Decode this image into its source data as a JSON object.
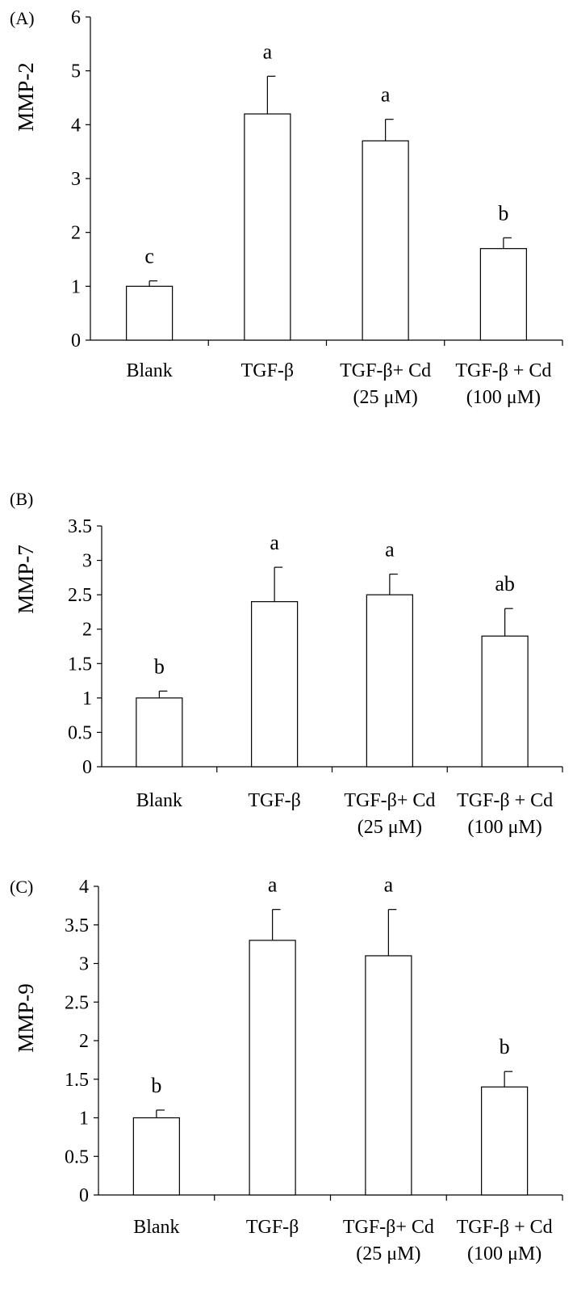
{
  "chart_data": [
    {
      "type": "bar",
      "panel_label": "(A)",
      "ylabel": "MMP-2",
      "categories": [
        [
          "Blank"
        ],
        [
          "TGF-β"
        ],
        [
          "TGF-β+ Cd",
          "(25 μM)"
        ],
        [
          "TGF-β + Cd",
          "(100 μM)"
        ]
      ],
      "values": [
        1.0,
        4.2,
        3.7,
        1.7
      ],
      "errors": [
        0.1,
        0.7,
        0.4,
        0.2
      ],
      "significance": [
        "c",
        "a",
        "a",
        "b"
      ],
      "ylim": [
        0,
        6
      ],
      "yticks": [
        "0",
        "1",
        "2",
        "3",
        "4",
        "5",
        "6"
      ],
      "bar_fill": "#ffffff",
      "bar_stroke": "#000000",
      "grid": false,
      "legend": "none"
    },
    {
      "type": "bar",
      "panel_label": "(B)",
      "ylabel": "MMP-7",
      "categories": [
        [
          "Blank"
        ],
        [
          "TGF-β"
        ],
        [
          "TGF-β+ Cd",
          "(25 μM)"
        ],
        [
          "TGF-β + Cd",
          "(100 μM)"
        ]
      ],
      "values": [
        1.0,
        2.4,
        2.5,
        1.9
      ],
      "errors": [
        0.1,
        0.5,
        0.3,
        0.4
      ],
      "significance": [
        "b",
        "a",
        "a",
        "ab"
      ],
      "ylim": [
        0,
        3.5
      ],
      "yticks": [
        "0",
        "0.5",
        "1",
        "1.5",
        "2",
        "2.5",
        "3",
        "3.5"
      ],
      "bar_fill": "#ffffff",
      "bar_stroke": "#000000",
      "grid": false,
      "legend": "none"
    },
    {
      "type": "bar",
      "panel_label": "(C)",
      "ylabel": "MMP-9",
      "categories": [
        [
          "Blank"
        ],
        [
          "TGF-β"
        ],
        [
          "TGF-β+ Cd",
          "(25 μM)"
        ],
        [
          "TGF-β + Cd",
          "(100 μM)"
        ]
      ],
      "values": [
        1.0,
        3.3,
        3.1,
        1.4
      ],
      "errors": [
        0.1,
        0.4,
        0.6,
        0.2
      ],
      "significance": [
        "b",
        "a",
        "a",
        "b"
      ],
      "ylim": [
        0,
        4
      ],
      "yticks": [
        "0",
        "0.5",
        "1",
        "1.5",
        "2",
        "2.5",
        "3",
        "3.5",
        "4"
      ],
      "bar_fill": "#ffffff",
      "bar_stroke": "#000000",
      "grid": false,
      "legend": "none"
    }
  ]
}
